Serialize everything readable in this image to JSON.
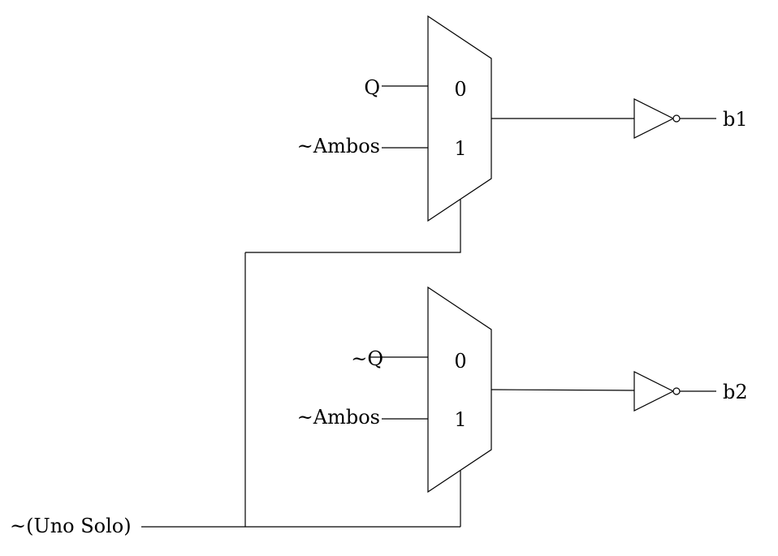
{
  "mux_top": {
    "input0_label": "Q",
    "input1_label": "~Ambos",
    "pin0": "0",
    "pin1": "1"
  },
  "mux_bottom": {
    "input0_label": "~Q",
    "input1_label": "~Ambos",
    "pin0": "0",
    "pin1": "1"
  },
  "select_input": {
    "label": "~(Uno Solo)"
  },
  "outputs": {
    "top": "b1",
    "bottom": "b2"
  }
}
